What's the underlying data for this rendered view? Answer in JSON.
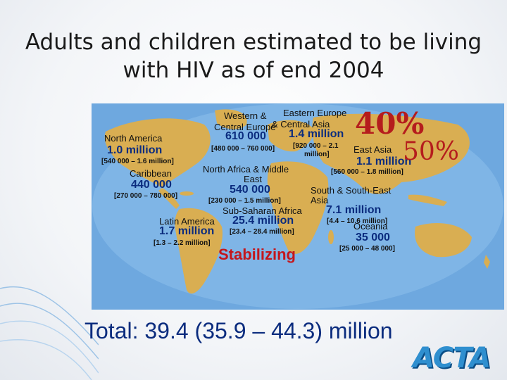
{
  "slide": {
    "title_line1": "Adults and children estimated to be living",
    "title_line2": "with HIV as of end 2004"
  },
  "regions": {
    "western_central_europe": {
      "label_line1": "Western &",
      "label_line2": "Central Europe",
      "value": "610 000",
      "range": "[480 000 – 760 000]"
    },
    "eastern_europe_central_asia": {
      "label_line1": "Eastern Europe",
      "label_line2": "& Central Asia",
      "value": "1.4 million",
      "range_line1": "[920 000 – 2.1",
      "range_line2": "million]",
      "percent": "40%"
    },
    "east_asia": {
      "label": "East Asia",
      "value": "1.1 million",
      "range": "[560 000 – 1.8 million]",
      "percent": "50%"
    },
    "north_america": {
      "label": "North America",
      "value": "1.0 million",
      "range": "[540 000 – 1.6 million]"
    },
    "caribbean": {
      "label": "Caribbean",
      "value": "440 000",
      "range": "[270 000 – 780 000]"
    },
    "north_africa_middle_east": {
      "label_line1": "North Africa & Middle",
      "label_line2": "East",
      "value": "540 000",
      "range": "[230 000 – 1.5 million]"
    },
    "south_southeast_asia": {
      "label_line1": "South & South-East",
      "label_line2": "Asia",
      "value": "7.1 million",
      "range": "[4.4 – 10.6 million]"
    },
    "sub_saharan_africa": {
      "label": "Sub-Saharan Africa",
      "value": "25.4 million",
      "range": "[23.4 – 28.4 million]",
      "status": "Stabilizing"
    },
    "latin_america": {
      "label": "Latin America",
      "value": "1.7 million",
      "range": "[1.3 – 2.2 million]"
    },
    "oceania": {
      "label": "Oceania",
      "value": "35 000",
      "range": "[25 000 – 48 000]"
    }
  },
  "footer": {
    "total": "Total: 39.4 (35.9 – 44.3) million",
    "logo_text": "ACTA"
  },
  "colors": {
    "ocean": "#6ea8df",
    "land": "#d9ae52",
    "value_blue": "#0b2c7e",
    "accent_red": "#c4161c"
  }
}
